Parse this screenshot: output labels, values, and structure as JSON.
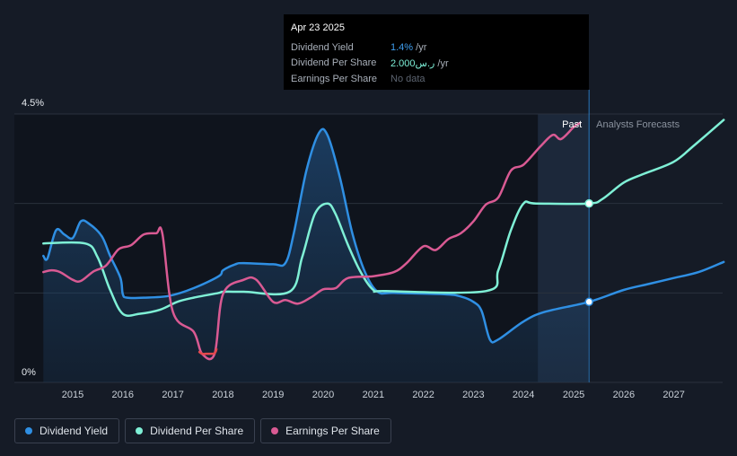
{
  "chart_data": {
    "type": "line",
    "y_axis": {
      "top_label": "4.5%",
      "bottom_label": "0%",
      "ylim": [
        0,
        4.5
      ]
    },
    "x_ticks": [
      "2015",
      "2016",
      "2017",
      "2018",
      "2019",
      "2020",
      "2021",
      "2022",
      "2023",
      "2024",
      "2025",
      "2026",
      "2027"
    ],
    "region_labels": {
      "past": "Past",
      "forecast": "Analysts Forecasts"
    },
    "today_date": "2025-04-23",
    "series": [
      {
        "name": "Dividend Yield",
        "color": "#2f8fe3",
        "area": true,
        "points": [
          [
            "2014-06-01",
            2.12
          ],
          [
            "2014-07-01",
            2.08
          ],
          [
            "2014-09-01",
            2.55
          ],
          [
            "2014-11-01",
            2.48
          ],
          [
            "2015-01-01",
            2.42
          ],
          [
            "2015-03-01",
            2.7
          ],
          [
            "2015-05-01",
            2.66
          ],
          [
            "2015-08-01",
            2.45
          ],
          [
            "2015-10-01",
            2.12
          ],
          [
            "2015-12-15",
            1.75
          ],
          [
            "2016-01-01",
            1.48
          ],
          [
            "2016-02-01",
            1.42
          ],
          [
            "2016-06-01",
            1.42
          ],
          [
            "2016-12-01",
            1.45
          ],
          [
            "2017-06-01",
            1.58
          ],
          [
            "2017-12-01",
            1.78
          ],
          [
            "2018-01-01",
            1.88
          ],
          [
            "2018-04-01",
            1.98
          ],
          [
            "2018-06-01",
            2.0
          ],
          [
            "2019-01-01",
            1.98
          ],
          [
            "2019-04-01",
            2.0
          ],
          [
            "2019-06-01",
            2.5
          ],
          [
            "2019-09-01",
            3.55
          ],
          [
            "2019-12-01",
            4.18
          ],
          [
            "2020-02-01",
            4.15
          ],
          [
            "2020-05-01",
            3.45
          ],
          [
            "2020-08-01",
            2.5
          ],
          [
            "2020-11-01",
            1.85
          ],
          [
            "2021-02-01",
            1.52
          ],
          [
            "2021-06-01",
            1.5
          ],
          [
            "2022-06-01",
            1.48
          ],
          [
            "2022-10-01",
            1.44
          ],
          [
            "2023-01-01",
            1.35
          ],
          [
            "2023-03-01",
            1.2
          ],
          [
            "2023-05-01",
            0.72
          ],
          [
            "2023-07-01",
            0.72
          ],
          [
            "2024-01-01",
            1.02
          ],
          [
            "2024-06-01",
            1.18
          ],
          [
            "2025-04-23",
            1.35
          ],
          [
            "2026-01-01",
            1.55
          ],
          [
            "2026-07-01",
            1.65
          ],
          [
            "2027-01-01",
            1.75
          ],
          [
            "2027-07-01",
            1.85
          ],
          [
            "2027-12-31",
            2.02
          ]
        ]
      },
      {
        "name": "Dividend Per Share",
        "color": "#7ff0d6",
        "area": false,
        "points": [
          [
            "2014-06-01",
            2.33
          ],
          [
            "2015-04-01",
            2.33
          ],
          [
            "2015-07-01",
            2.1
          ],
          [
            "2015-10-01",
            1.55
          ],
          [
            "2016-01-01",
            1.15
          ],
          [
            "2016-05-01",
            1.15
          ],
          [
            "2016-10-01",
            1.22
          ],
          [
            "2017-02-01",
            1.35
          ],
          [
            "2017-06-01",
            1.42
          ],
          [
            "2017-12-01",
            1.5
          ],
          [
            "2018-01-01",
            1.52
          ],
          [
            "2018-06-01",
            1.52
          ],
          [
            "2019-05-01",
            1.52
          ],
          [
            "2019-08-01",
            2.1
          ],
          [
            "2019-11-01",
            2.82
          ],
          [
            "2020-02-01",
            3.0
          ],
          [
            "2020-04-01",
            2.82
          ],
          [
            "2020-07-01",
            2.3
          ],
          [
            "2020-10-01",
            1.85
          ],
          [
            "2021-01-01",
            1.55
          ],
          [
            "2021-04-01",
            1.53
          ],
          [
            "2023-04-01",
            1.53
          ],
          [
            "2023-07-01",
            1.88
          ],
          [
            "2023-10-01",
            2.55
          ],
          [
            "2024-01-01",
            3.0
          ],
          [
            "2024-04-01",
            3.0
          ],
          [
            "2025-04-23",
            3.0
          ],
          [
            "2025-08-01",
            3.08
          ],
          [
            "2026-01-01",
            3.35
          ],
          [
            "2026-06-01",
            3.5
          ],
          [
            "2027-01-01",
            3.7
          ],
          [
            "2027-06-01",
            3.98
          ],
          [
            "2027-12-31",
            4.4
          ]
        ]
      },
      {
        "name": "Earnings Per Share",
        "color": "#d95a93",
        "negative_color": "#e5484d",
        "area": false,
        "points": [
          [
            "2014-06-01",
            1.85
          ],
          [
            "2014-08-01",
            1.88
          ],
          [
            "2014-10-01",
            1.85
          ],
          [
            "2015-01-01",
            1.72
          ],
          [
            "2015-03-01",
            1.7
          ],
          [
            "2015-06-01",
            1.86
          ],
          [
            "2015-09-01",
            1.96
          ],
          [
            "2015-12-01",
            2.23
          ],
          [
            "2016-03-01",
            2.3
          ],
          [
            "2016-06-01",
            2.48
          ],
          [
            "2016-09-01",
            2.5
          ],
          [
            "2016-10-15",
            2.5
          ],
          [
            "2017-01-01",
            1.18
          ],
          [
            "2017-06-01",
            0.85
          ],
          [
            "2017-08-01",
            0.48
          ],
          [
            "2017-11-01",
            0.48
          ],
          [
            "2018-01-01",
            1.48
          ],
          [
            "2018-06-01",
            1.72
          ],
          [
            "2018-09-01",
            1.72
          ],
          [
            "2019-01-01",
            1.35
          ],
          [
            "2019-04-01",
            1.38
          ],
          [
            "2019-07-01",
            1.32
          ],
          [
            "2019-10-01",
            1.42
          ],
          [
            "2020-01-01",
            1.56
          ],
          [
            "2020-04-01",
            1.58
          ],
          [
            "2020-07-01",
            1.75
          ],
          [
            "2021-01-01",
            1.78
          ],
          [
            "2021-06-01",
            1.85
          ],
          [
            "2021-09-01",
            2.0
          ],
          [
            "2022-01-01",
            2.28
          ],
          [
            "2022-04-01",
            2.22
          ],
          [
            "2022-07-01",
            2.4
          ],
          [
            "2022-10-01",
            2.5
          ],
          [
            "2023-01-01",
            2.7
          ],
          [
            "2023-04-01",
            2.98
          ],
          [
            "2023-07-01",
            3.1
          ],
          [
            "2023-10-01",
            3.55
          ],
          [
            "2024-01-01",
            3.65
          ],
          [
            "2024-05-01",
            3.95
          ],
          [
            "2024-08-01",
            4.15
          ],
          [
            "2024-10-01",
            4.08
          ],
          [
            "2025-01-01",
            4.28
          ],
          [
            "2025-02-15",
            4.35
          ]
        ]
      }
    ]
  },
  "tooltip": {
    "date": "Apr 23 2025",
    "rows": [
      {
        "label": "Dividend Yield",
        "value": "1.4%",
        "suffix": " /yr",
        "style": "num-blue"
      },
      {
        "label": "Dividend Per Share",
        "value": "2.000ر.س",
        "suffix": " /yr",
        "style": "num-teal"
      },
      {
        "label": "Earnings Per Share",
        "value": "No data",
        "suffix": "",
        "style": "num-gray"
      }
    ]
  },
  "legend": [
    {
      "label": "Dividend Yield",
      "color": "#2f8fe3"
    },
    {
      "label": "Dividend Per Share",
      "color": "#7ff0d6"
    },
    {
      "label": "Earnings Per Share",
      "color": "#d95a93"
    }
  ]
}
